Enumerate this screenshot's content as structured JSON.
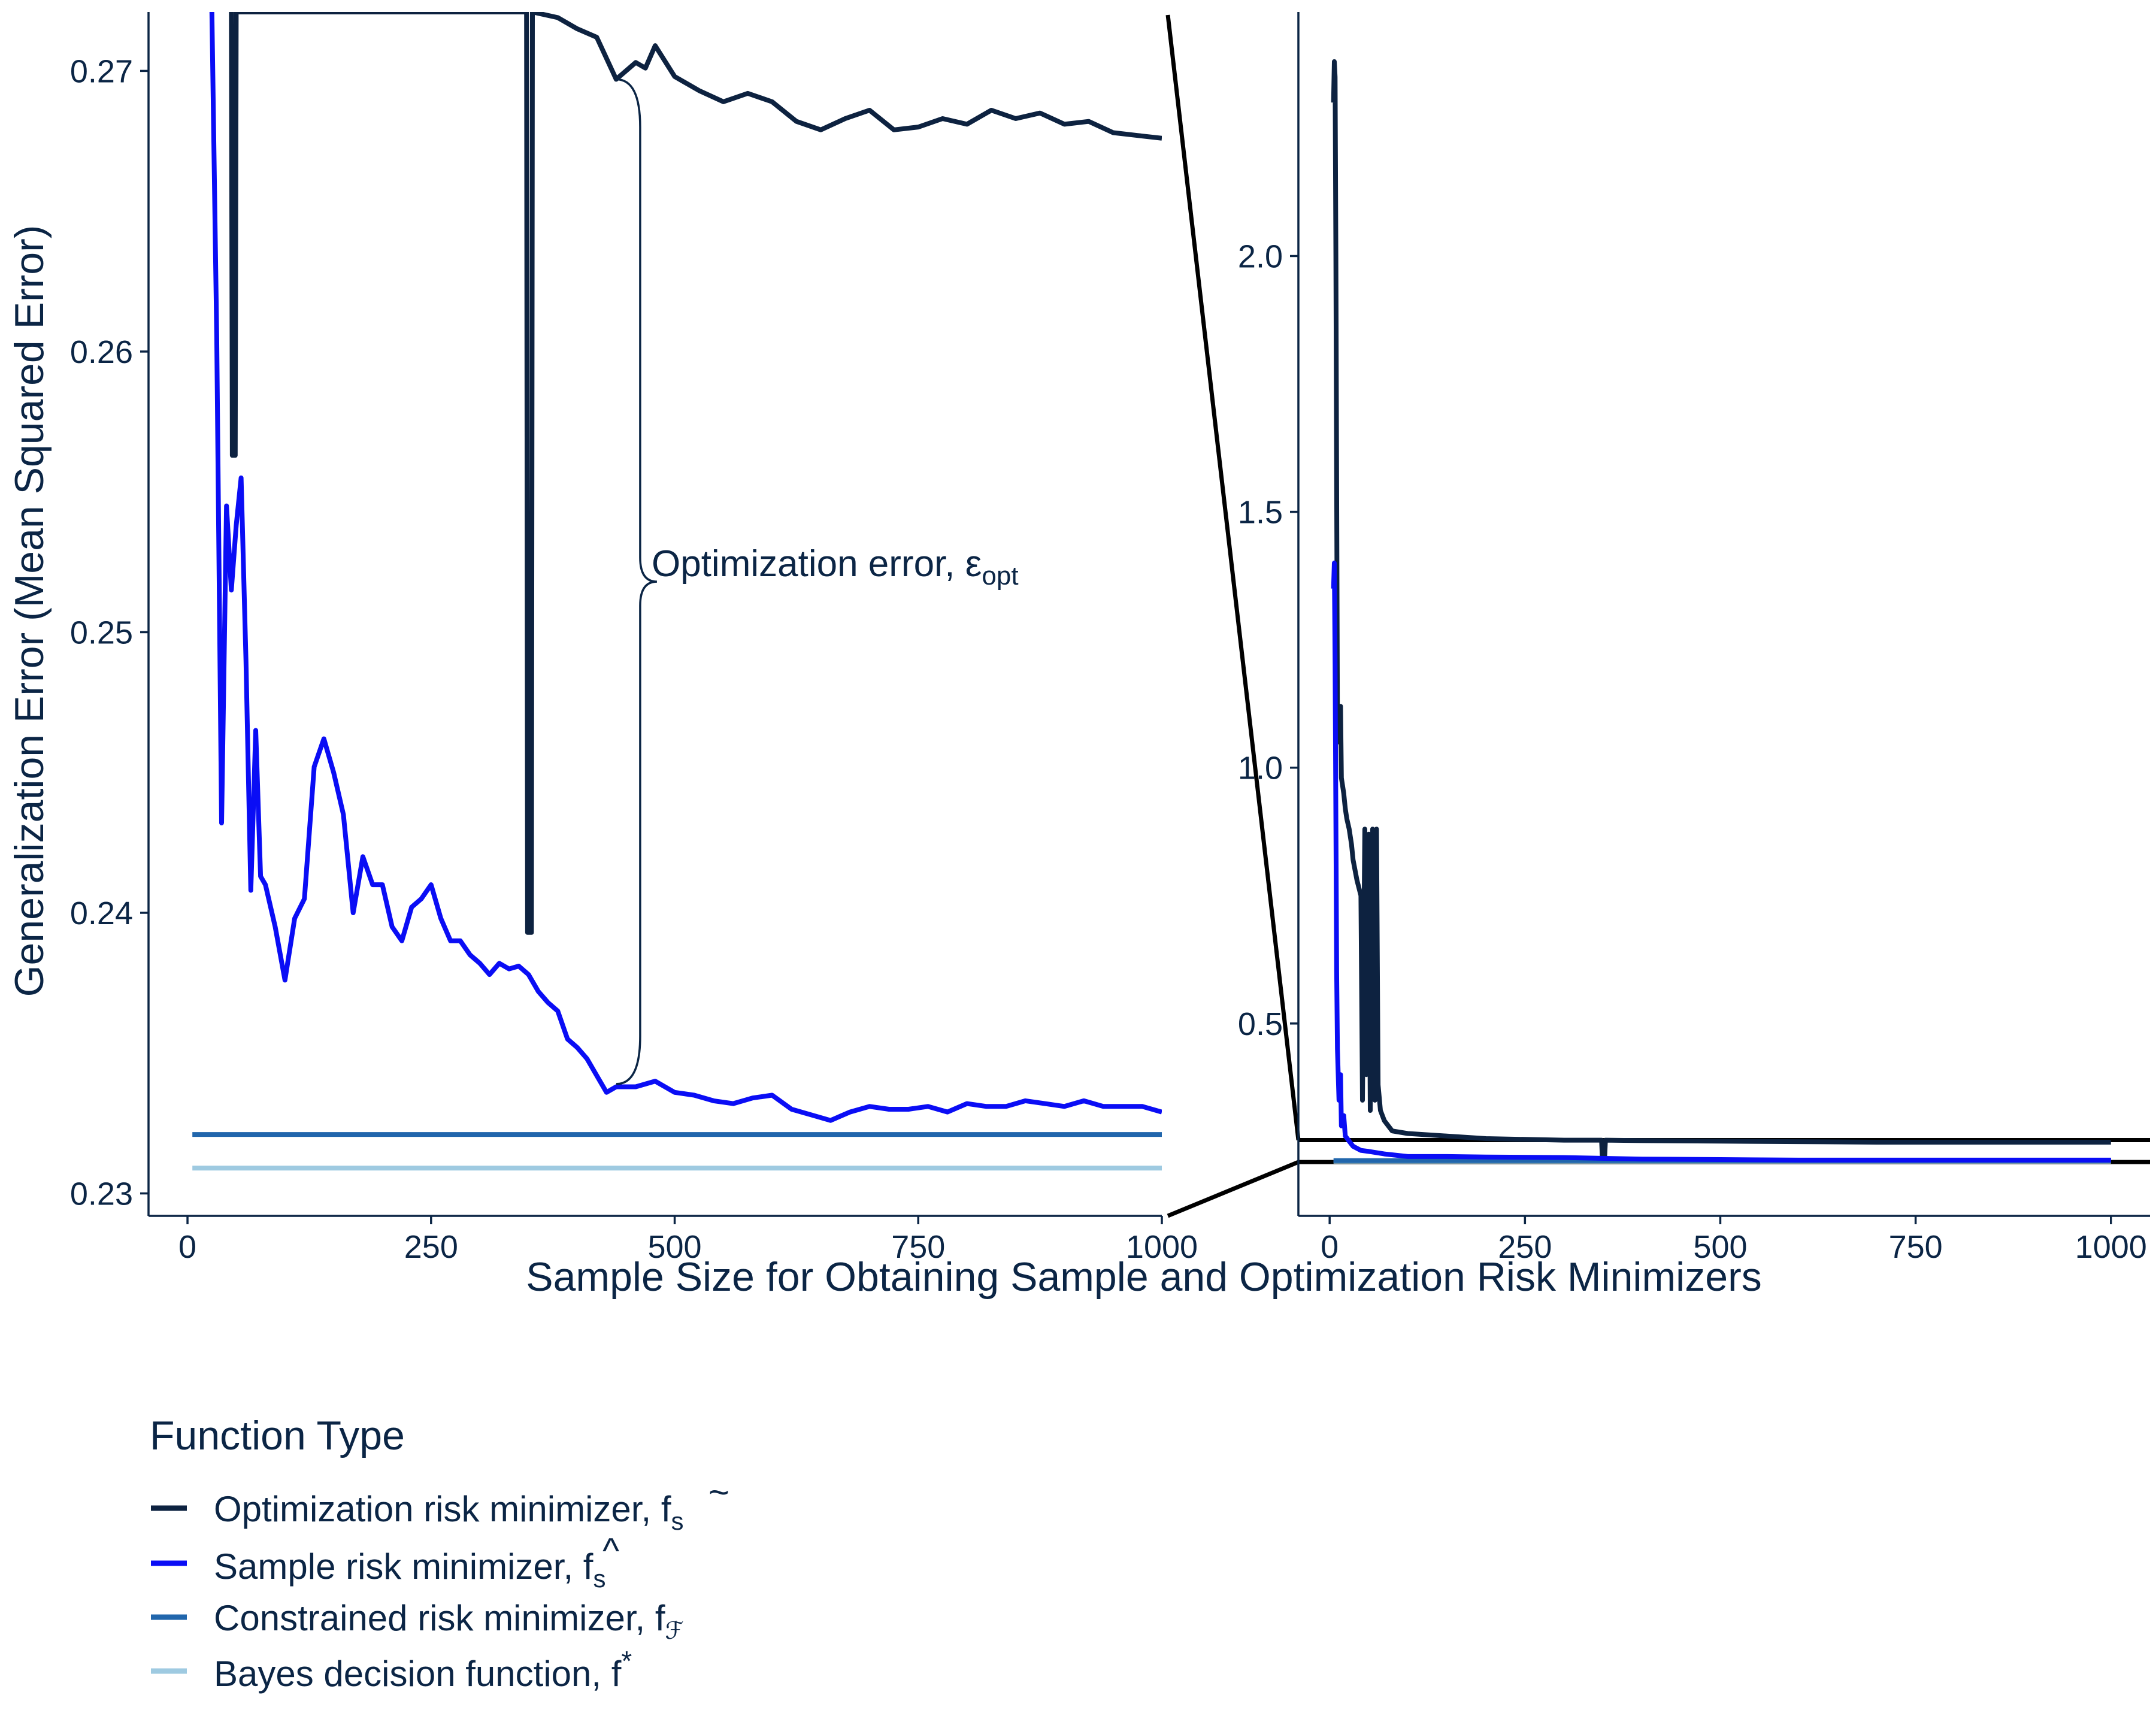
{
  "colors": {
    "optimization": "#0d2240",
    "sample": "#0a0df5",
    "constrained": "#2166ac",
    "bayes": "#9ecae1",
    "text": "#0b2545",
    "zoom_lines": "#000000"
  },
  "annotation": {
    "text": "Optimization error, ",
    "symbol": "ε",
    "subscript": "opt"
  },
  "chart_data": [
    {
      "type": "line",
      "panel": "zoomed",
      "title": "",
      "xlabel": "Sample Size for Obtaining Sample and Optimization Risk Minimizers",
      "ylabel": "Generalization Error (Mean Squared Error)",
      "xlim": [
        -40,
        1000
      ],
      "ylim": [
        0.2292,
        0.2721
      ],
      "x_ticks": [
        0,
        250,
        500,
        750,
        1000
      ],
      "x_tick_labels": [
        "0",
        "250",
        "500",
        "750",
        "1000"
      ],
      "y_ticks": [
        0.23,
        0.24,
        0.25,
        0.26,
        0.27
      ],
      "y_tick_labels": [
        "0.23",
        "0.24",
        "0.25",
        "0.26",
        "0.27"
      ],
      "grid": false,
      "series": [
        {
          "name": "Optimization risk minimizer",
          "x": [
            45,
            46,
            49,
            50,
            348,
            349,
            353,
            354,
            380,
            400,
            420,
            440,
            460,
            470,
            480,
            500,
            525,
            550,
            575,
            600,
            625,
            650,
            675,
            700,
            725,
            750,
            775,
            800,
            825,
            850,
            875,
            900,
            925,
            950,
            975,
            1000
          ],
          "y": [
            0.2721,
            0.2563,
            0.2563,
            0.2721,
            0.2721,
            0.2393,
            0.2393,
            0.2721,
            0.2719,
            0.2715,
            0.2712,
            0.2697,
            0.2703,
            0.2701,
            0.2709,
            0.2698,
            0.2693,
            0.2689,
            0.2692,
            0.2689,
            0.2682,
            0.2679,
            0.2683,
            0.2686,
            0.2679,
            0.268,
            0.2683,
            0.2681,
            0.2686,
            0.2683,
            0.2685,
            0.2681,
            0.2682,
            0.2678,
            0.2677,
            0.2676
          ]
        },
        {
          "name": "Sample risk minimizer",
          "x": [
            25,
            30,
            35,
            40,
            45,
            50,
            55,
            60,
            65,
            70,
            75,
            80,
            90,
            100,
            110,
            120,
            130,
            140,
            150,
            160,
            170,
            180,
            190,
            200,
            210,
            220,
            230,
            240,
            250,
            260,
            270,
            280,
            290,
            300,
            310,
            320,
            330,
            340,
            350,
            360,
            370,
            380,
            390,
            400,
            410,
            420,
            430,
            440,
            460,
            480,
            500,
            520,
            540,
            560,
            580,
            600,
            620,
            640,
            660,
            680,
            700,
            720,
            740,
            760,
            780,
            800,
            820,
            840,
            860,
            880,
            900,
            920,
            940,
            960,
            980,
            1000
          ],
          "y": [
            0.2721,
            0.2605,
            0.2432,
            0.2545,
            0.2515,
            0.2538,
            0.2555,
            0.249,
            0.2408,
            0.2465,
            0.2413,
            0.241,
            0.2395,
            0.2376,
            0.2398,
            0.2405,
            0.2452,
            0.2462,
            0.245,
            0.2435,
            0.24,
            0.242,
            0.241,
            0.241,
            0.2395,
            0.239,
            0.2402,
            0.2405,
            0.241,
            0.2398,
            0.239,
            0.239,
            0.2385,
            0.2382,
            0.2378,
            0.2382,
            0.238,
            0.2381,
            0.2378,
            0.2372,
            0.2368,
            0.2365,
            0.2355,
            0.2352,
            0.2348,
            0.2342,
            0.2336,
            0.2338,
            0.2338,
            0.234,
            0.2336,
            0.2335,
            0.2333,
            0.2332,
            0.2334,
            0.2335,
            0.233,
            0.2328,
            0.2326,
            0.2329,
            0.2331,
            0.233,
            0.233,
            0.2331,
            0.2329,
            0.2332,
            0.2331,
            0.2331,
            0.2333,
            0.2332,
            0.2331,
            0.2333,
            0.2331,
            0.2331,
            0.2331,
            0.2329
          ]
        },
        {
          "name": "Constrained risk minimizer",
          "x": [
            5,
            1000
          ],
          "y": [
            0.2321,
            0.2321
          ]
        },
        {
          "name": "Bayes decision function",
          "x": [
            5,
            1000
          ],
          "y": [
            0.2309,
            0.2309
          ]
        }
      ]
    },
    {
      "type": "line",
      "panel": "full",
      "title": "",
      "xlabel": "",
      "ylabel": "",
      "xlim": [
        -40,
        1050
      ],
      "ylim": [
        0.124,
        2.477
      ],
      "x_ticks": [
        0,
        250,
        500,
        750,
        1000
      ],
      "x_tick_labels": [
        "0",
        "250",
        "500",
        "750",
        "1000"
      ],
      "y_ticks": [
        0.5,
        1.0,
        1.5,
        2.0
      ],
      "y_tick_labels": [
        "0.5",
        "1.0",
        "1.5",
        "2.0"
      ],
      "grid": false,
      "zoom_band": [
        0.2292,
        0.2721
      ],
      "series": [
        {
          "name": "Optimization risk minimizer",
          "x": [
            5,
            6,
            7,
            8,
            9,
            10,
            12,
            14,
            15,
            18,
            20,
            22,
            25,
            28,
            30,
            35,
            40,
            42,
            45,
            47,
            50,
            52,
            55,
            58,
            60,
            62,
            65,
            70,
            80,
            100,
            150,
            200,
            300,
            348,
            349,
            352,
            353,
            400,
            500,
            600,
            700,
            800,
            900,
            1000
          ],
          "y": [
            2.3,
            2.38,
            2.35,
            2.0,
            1.55,
            1.1,
            1.05,
            1.12,
            0.98,
            0.95,
            0.92,
            0.9,
            0.88,
            0.85,
            0.82,
            0.78,
            0.75,
            0.35,
            0.88,
            0.4,
            0.87,
            0.33,
            0.88,
            0.35,
            0.88,
            0.38,
            0.33,
            0.31,
            0.29,
            0.285,
            0.28,
            0.275,
            0.272,
            0.272,
            0.239,
            0.239,
            0.272,
            0.271,
            0.27,
            0.269,
            0.268,
            0.268,
            0.268,
            0.268
          ]
        },
        {
          "name": "Sample risk minimizer",
          "x": [
            5,
            6,
            7,
            8,
            9,
            10,
            12,
            14,
            15,
            18,
            20,
            25,
            30,
            40,
            50,
            70,
            100,
            150,
            200,
            300,
            400,
            500,
            600,
            700,
            800,
            900,
            1000
          ],
          "y": [
            1.35,
            1.4,
            1.2,
            0.9,
            0.6,
            0.45,
            0.35,
            0.4,
            0.3,
            0.32,
            0.28,
            0.27,
            0.26,
            0.252,
            0.25,
            0.245,
            0.24,
            0.24,
            0.239,
            0.238,
            0.235,
            0.234,
            0.233,
            0.233,
            0.233,
            0.233,
            0.233
          ]
        },
        {
          "name": "Constrained risk minimizer",
          "x": [
            5,
            1000
          ],
          "y": [
            0.2321,
            0.2321
          ]
        },
        {
          "name": "Bayes decision function",
          "x": [
            5,
            1000
          ],
          "y": [
            0.2309,
            0.2309
          ]
        }
      ]
    }
  ],
  "legend": {
    "title": "Function Type",
    "placement": "bottom-left",
    "items": [
      {
        "text": "Optimization risk minimizer, ",
        "math": "f",
        "accent": "~",
        "subscript": "s",
        "color": "#0d2240"
      },
      {
        "text": "Sample risk minimizer, ",
        "math": "f",
        "accent": "^",
        "subscript": "s",
        "color": "#0a0df5"
      },
      {
        "text": "Constrained risk minimizer, ",
        "math": "f",
        "accent": "",
        "subscript": "ℱ",
        "color": "#2166ac"
      },
      {
        "text": "Bayes decision function, ",
        "math": "f",
        "accent": "",
        "superscript": "*",
        "color": "#9ecae1"
      }
    ]
  }
}
